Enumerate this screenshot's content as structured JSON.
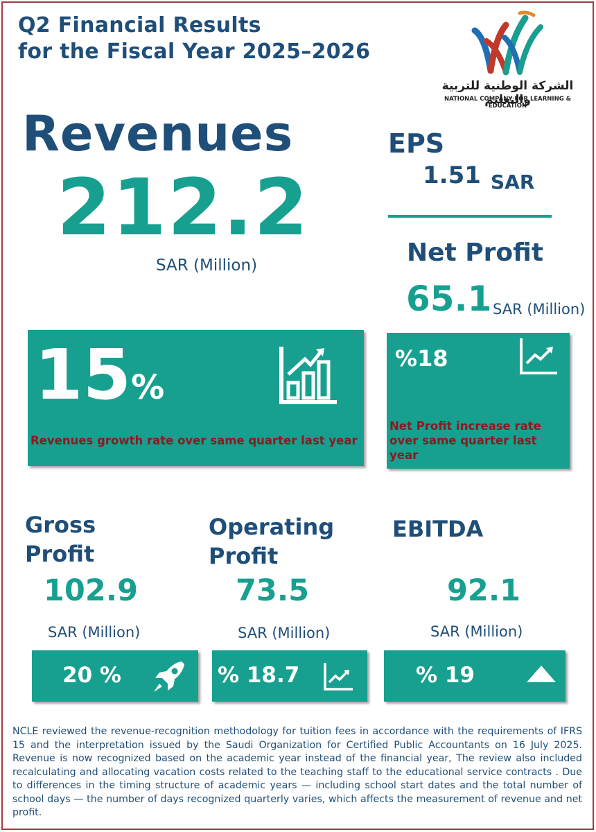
{
  "header": {
    "title_line1": "Q2 Financial Results",
    "title_line2": "for the Fiscal Year 2025–2026"
  },
  "logo": {
    "arabic_name": "الشركة الوطنية للتربية والتعليم",
    "english_name": "NATIONAL COMPANY FOR LEARNING & EDUCATION",
    "colors": [
      "#c0392b",
      "#1f6fb2",
      "#1a9e8f",
      "#e08a2a"
    ]
  },
  "revenues": {
    "heading": "Revenues",
    "value": "212.2",
    "unit": "SAR (Million)",
    "growth_value": "15",
    "growth_sign": "%",
    "growth_caption": "Revenues growth rate over same quarter last year",
    "icon": "bar-chart-growth-icon"
  },
  "eps": {
    "heading": "EPS",
    "value": "1.51",
    "unit": "SAR"
  },
  "net_profit": {
    "heading": "Net Profit",
    "value": "65.1",
    "unit": "SAR (Million)",
    "increase": "%18",
    "caption": "Net Profit increase rate over same quarter last year",
    "icon": "line-chart-up-icon"
  },
  "metrics": [
    {
      "heading_line1": "Gross",
      "heading_line2": "Profit",
      "value": "102.9",
      "unit": "SAR (Million)",
      "change": "20 %",
      "icon": "rocket-icon"
    },
    {
      "heading_line1": "Operating",
      "heading_line2": "Profit",
      "value": "73.5",
      "unit": "SAR (Million)",
      "change": "% 18.7",
      "icon": "line-chart-up-icon"
    },
    {
      "heading_line1": "EBITDA",
      "value": "92.1",
      "unit": "SAR (Million)",
      "change": "% 19",
      "icon": "triangle-up-icon"
    }
  ],
  "footnote": "NCLE reviewed the revenue-recognition methodology for tuition fees in accordance with the requirements of IFRS 15 and the interpretation issued by the Saudi Organization for Certified Public Accountants on 16 July 2025. Revenue is now recognized based on the academic year instead of the financial year, The review also included recalculating and allocating vacation costs related to the teaching staff to the educational service contracts . Due to differences in the timing structure of academic years — including school start dates and the total number of school days — the number of days recognized quarterly varies, which affects the measurement of revenue and net profit.",
  "colors": {
    "navy": "#1f4e79",
    "teal": "#17a090",
    "caption_red": "#8b1a1f",
    "frame": "#a83a3f"
  }
}
